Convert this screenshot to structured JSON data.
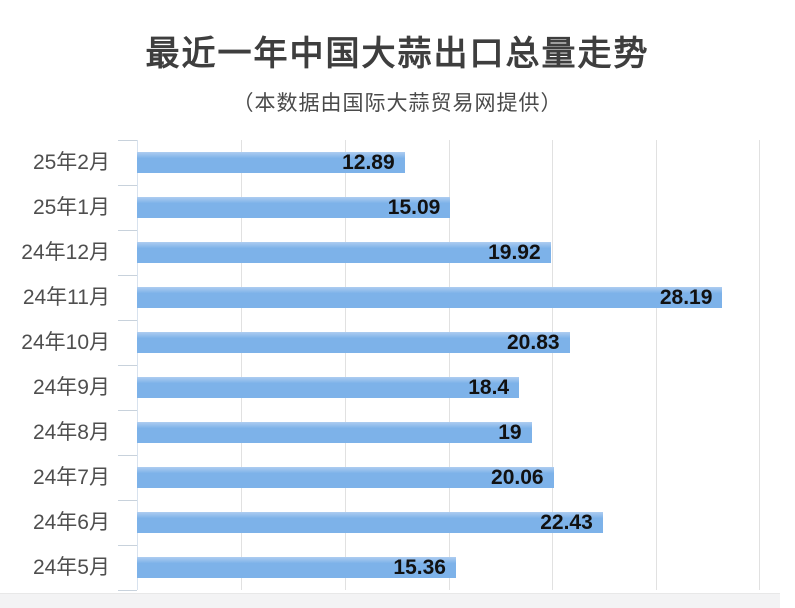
{
  "colors": {
    "bar": "#7db2e9",
    "bar_top": "#aecdf1",
    "grid": "#e1e1e1",
    "axis": "#d8e2ee",
    "tick": "#c8d2dc",
    "title_text": "#3e3e3e",
    "subtitle_text": "#4a4a4a",
    "category_text": "#4f4f4f",
    "value_text": "#111111",
    "footer_strip": "#f3f3f4",
    "footer_border": "#e8e8e8"
  },
  "chart_data": {
    "type": "bar",
    "orientation": "horizontal",
    "title": "最近一年中国大蒜出口总量走势",
    "subtitle": "（本数据由国际大蒜贸易网提供）",
    "categories": [
      "25年2月",
      "25年1月",
      "24年12月",
      "24年11月",
      "24年10月",
      "24年9月",
      "24年8月",
      "24年7月",
      "24年6月",
      "24年5月"
    ],
    "values": [
      12.89,
      15.09,
      19.92,
      28.19,
      20.83,
      18.4,
      19,
      20.06,
      22.43,
      15.36
    ],
    "value_labels": [
      "12.89",
      "15.09",
      "19.92",
      "28.19",
      "20.83",
      "18.4",
      "19",
      "20.06",
      "22.43",
      "15.36"
    ],
    "xlim": [
      0,
      30
    ],
    "grid_interval": 5,
    "grid": "vertical-lines",
    "value_label_position": "inside-end",
    "legend": "none",
    "xlabel": "",
    "ylabel": ""
  }
}
